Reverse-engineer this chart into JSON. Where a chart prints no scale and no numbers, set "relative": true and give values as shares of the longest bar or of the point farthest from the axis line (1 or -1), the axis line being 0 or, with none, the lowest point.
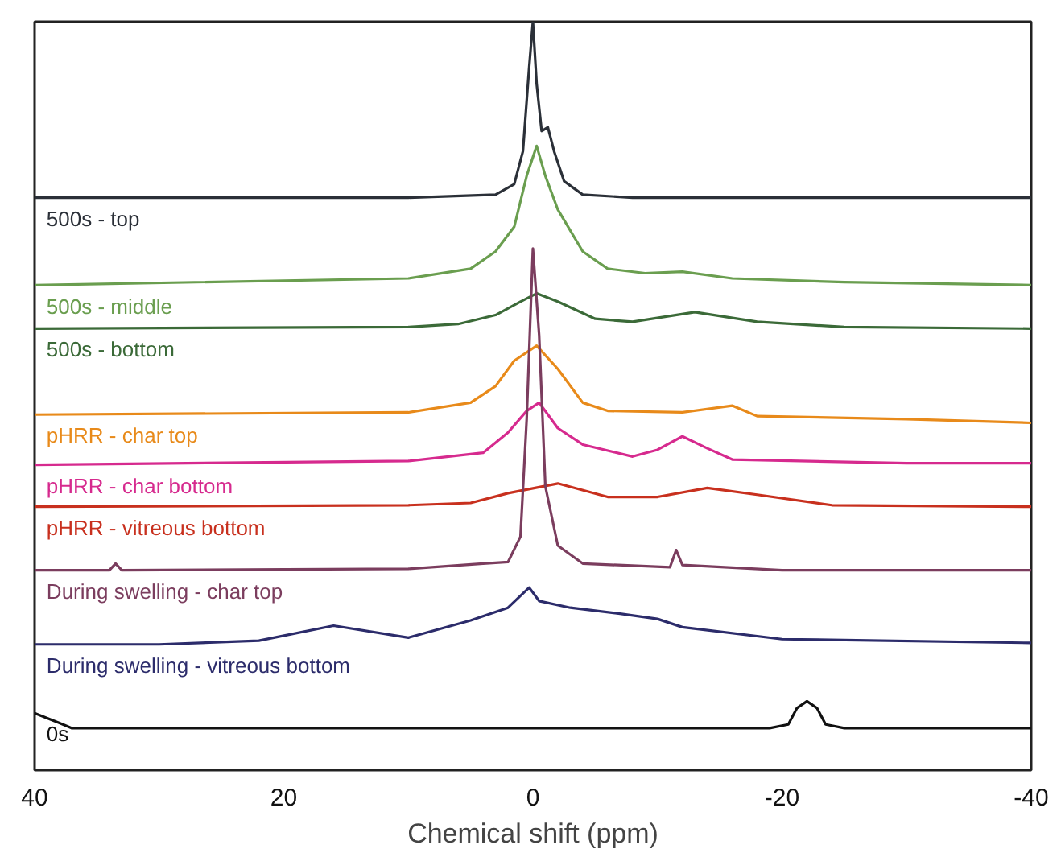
{
  "chart_data": {
    "type": "line",
    "relative": true,
    "xlabel": "Chemical shift (ppm)",
    "xlim": [
      40,
      -40
    ],
    "xticks": [
      40,
      20,
      0,
      -20,
      -40
    ],
    "grid": false,
    "legend": false,
    "marker": "none",
    "line_style": "solid",
    "series": [
      {
        "name": "500s - top",
        "color": "#2b3038",
        "x": [
          40,
          10,
          3,
          1.5,
          0.8,
          0.3,
          0,
          -0.3,
          -0.7,
          -1.2,
          -1.7,
          -2.5,
          -4,
          -8,
          -40
        ],
        "values": [
          0.765,
          0.765,
          0.769,
          0.783,
          0.827,
          0.939,
          1.0,
          0.917,
          0.854,
          0.859,
          0.827,
          0.787,
          0.769,
          0.765,
          0.765
        ]
      },
      {
        "name": "500s - middle",
        "color": "#6a9e4f",
        "x": [
          40,
          10,
          5,
          3,
          1.5,
          0.5,
          -0.3,
          -1,
          -2,
          -4,
          -6,
          -9,
          -12,
          -16,
          -25,
          -40
        ],
        "values": [
          0.648,
          0.657,
          0.67,
          0.693,
          0.726,
          0.794,
          0.834,
          0.794,
          0.749,
          0.693,
          0.67,
          0.664,
          0.666,
          0.657,
          0.652,
          0.648
        ]
      },
      {
        "name": "500s - bottom",
        "color": "#3b6a38",
        "x": [
          40,
          10,
          6,
          3,
          1,
          -0.3,
          -2,
          -5,
          -8,
          -13,
          -18,
          -25,
          -40
        ],
        "values": [
          0.59,
          0.592,
          0.596,
          0.608,
          0.626,
          0.637,
          0.626,
          0.603,
          0.599,
          0.612,
          0.599,
          0.592,
          0.59
        ]
      },
      {
        "name": "pHRR - char top",
        "color": "#e88a1a",
        "x": [
          40,
          10,
          5,
          3,
          1.5,
          -0.3,
          -2,
          -4,
          -6,
          -12,
          -16,
          -18,
          -30,
          -40
        ],
        "values": [
          0.475,
          0.478,
          0.491,
          0.513,
          0.547,
          0.567,
          0.536,
          0.491,
          0.48,
          0.478,
          0.487,
          0.473,
          0.469,
          0.464
        ]
      },
      {
        "name": "pHRR - char bottom",
        "color": "#d62a8e",
        "x": [
          40,
          10,
          4,
          2,
          0.5,
          -0.5,
          -2,
          -4,
          -8,
          -10,
          -12,
          -14,
          -16,
          -30,
          -40
        ],
        "values": [
          0.408,
          0.413,
          0.424,
          0.451,
          0.48,
          0.491,
          0.457,
          0.435,
          0.419,
          0.428,
          0.446,
          0.43,
          0.415,
          0.41,
          0.41
        ]
      },
      {
        "name": "pHRR - vitreous bottom",
        "color": "#c8301e",
        "x": [
          40,
          10,
          5,
          2,
          -2,
          -6,
          -10,
          -14,
          -18,
          -24,
          -40
        ],
        "values": [
          0.352,
          0.354,
          0.357,
          0.37,
          0.383,
          0.365,
          0.365,
          0.377,
          0.368,
          0.354,
          0.352
        ]
      },
      {
        "name": "During swelling - char top",
        "color": "#7b3d5e",
        "x": [
          40,
          34,
          33.5,
          33,
          10,
          4,
          2,
          1,
          0.5,
          0,
          -0.5,
          -1,
          -2,
          -4,
          -11,
          -11.5,
          -12,
          -20,
          -40
        ],
        "values": [
          0.267,
          0.267,
          0.276,
          0.267,
          0.269,
          0.276,
          0.278,
          0.312,
          0.469,
          0.697,
          0.581,
          0.379,
          0.3,
          0.276,
          0.271,
          0.294,
          0.274,
          0.267,
          0.267
        ]
      },
      {
        "name": "During swelling - vitreous bottom",
        "color": "#2c2c6b",
        "x": [
          40,
          30,
          22,
          16,
          10,
          5,
          2,
          1,
          0.3,
          -0.5,
          -3,
          -7,
          -10,
          -12,
          -20,
          -40
        ],
        "values": [
          0.168,
          0.168,
          0.173,
          0.193,
          0.177,
          0.2,
          0.217,
          0.233,
          0.244,
          0.226,
          0.217,
          0.209,
          0.202,
          0.191,
          0.175,
          0.17
        ]
      },
      {
        "name": "0s",
        "color": "#111111",
        "x": [
          40,
          38,
          37,
          20,
          -19,
          -20.5,
          -21.2,
          -22,
          -22.8,
          -23.5,
          -25,
          -40
        ],
        "values": [
          0.076,
          0.063,
          0.056,
          0.056,
          0.056,
          0.061,
          0.083,
          0.092,
          0.083,
          0.061,
          0.056,
          0.056
        ]
      }
    ]
  }
}
